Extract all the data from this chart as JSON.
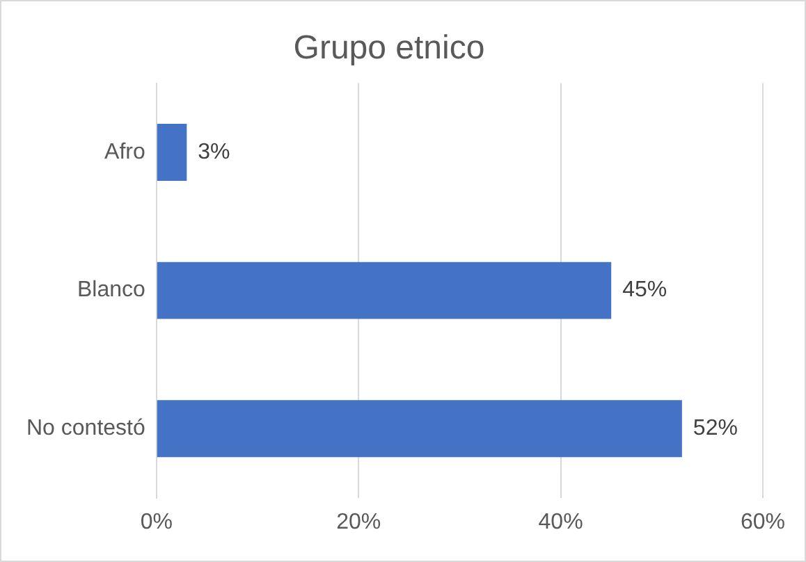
{
  "chart_data": {
    "type": "bar",
    "orientation": "horizontal",
    "title": "Grupo etnico",
    "categories": [
      "Afro",
      "Blanco",
      "No contestó"
    ],
    "values": [
      3,
      45,
      52
    ],
    "color": "#4472c4",
    "value_labels": [
      "3%",
      "45%",
      "52%"
    ],
    "xlim": [
      0,
      60
    ],
    "xticks": [
      {
        "value": 0,
        "label": "0%"
      },
      {
        "value": 20,
        "label": "20%"
      },
      {
        "value": 40,
        "label": "40%"
      },
      {
        "value": 60,
        "label": "60%"
      }
    ],
    "grid": "x",
    "legend": false
  }
}
